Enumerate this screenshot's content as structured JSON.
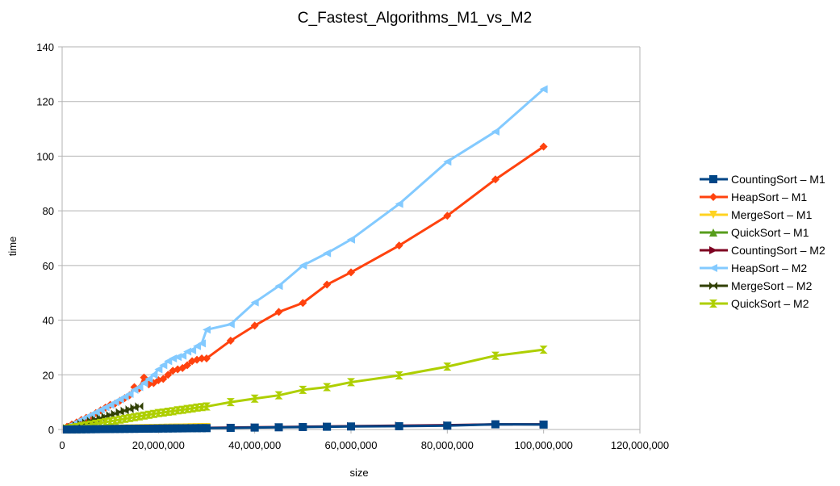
{
  "chart_data": {
    "type": "line",
    "title": "C_Fastest_Algorithms_M1_vs_M2",
    "xlabel": "size",
    "ylabel": "time",
    "xlim": [
      0,
      120000000
    ],
    "ylim": [
      0,
      140
    ],
    "xticks": [
      0,
      20000000,
      40000000,
      60000000,
      80000000,
      100000000,
      120000000
    ],
    "xtick_labels": [
      "0",
      "20,000,000",
      "40,000,000",
      "60,000,000",
      "80,000,000",
      "100,000,000",
      "120,000,000"
    ],
    "yticks": [
      0,
      20,
      40,
      60,
      80,
      100,
      120,
      140
    ],
    "ytick_labels": [
      "0",
      "20",
      "40",
      "60",
      "80",
      "100",
      "120",
      "140"
    ],
    "grid": "horizontal",
    "legend": "right",
    "x_dense_millions": [
      1,
      2,
      3,
      4,
      5,
      6,
      7,
      8,
      9,
      10,
      11,
      12,
      13,
      14,
      15,
      16,
      17,
      18,
      19,
      20,
      21,
      22,
      23,
      24,
      25,
      26,
      27,
      28,
      29,
      30
    ],
    "x_sparse_millions": [
      35,
      40,
      45,
      50,
      55,
      60,
      70,
      80,
      90,
      100
    ],
    "series": [
      {
        "name": "CountingSort – M1",
        "color": "#004586",
        "marker": "square",
        "values": [
          0.02,
          0.03,
          0.05,
          0.07,
          0.08,
          0.1,
          0.12,
          0.14,
          0.15,
          0.17,
          0.19,
          0.2,
          0.22,
          0.24,
          0.25,
          0.27,
          0.29,
          0.3,
          0.32,
          0.34,
          0.36,
          0.37,
          0.39,
          0.41,
          0.42,
          0.44,
          0.46,
          0.47,
          0.49,
          0.5,
          0.6,
          0.7,
          0.8,
          0.9,
          1.0,
          1.1,
          1.2,
          1.4,
          1.9,
          1.8
        ]
      },
      {
        "name": "HeapSort – M1",
        "color": "#ff420e",
        "marker": "diamond",
        "values": [
          1,
          1.8,
          2.6,
          3.5,
          4.3,
          5,
          6,
          7,
          8,
          9,
          9.5,
          10.5,
          11.5,
          12.5,
          15.5,
          15,
          19,
          16.5,
          17,
          18,
          18.5,
          20,
          21.5,
          22,
          22.5,
          23.5,
          25,
          25.5,
          26,
          26,
          32.5,
          38,
          43,
          46.3,
          53,
          57.5,
          67.3,
          78.2,
          91.5,
          103.5
        ]
      },
      {
        "name": "MergeSort – M1",
        "color": "#ffd320",
        "marker": "triangle-down",
        "values": [
          0.03,
          0.06,
          0.09,
          0.12,
          0.15,
          0.18,
          0.21,
          0.24,
          0.27,
          0.3,
          0.33,
          0.36,
          0.39,
          0.42,
          0.45,
          0.48,
          0.51,
          0.54,
          0.57,
          0.6,
          0.63,
          0.66,
          0.69,
          0.72,
          0.75,
          0.78,
          0.81,
          0.84,
          0.87,
          0.9
        ]
      },
      {
        "name": "QuickSort – M1",
        "color": "#579d1c",
        "marker": "triangle-up",
        "values": [
          0.03,
          0.05,
          0.08,
          0.1,
          0.13,
          0.15,
          0.18,
          0.2,
          0.23,
          0.25,
          0.28,
          0.3,
          0.33,
          0.35,
          0.38,
          0.4,
          0.43,
          0.45,
          0.48,
          0.5,
          0.53,
          0.55,
          0.58,
          0.6,
          0.63,
          0.65,
          0.68,
          0.7,
          0.73,
          0.75
        ]
      },
      {
        "name": "CountingSort – M2",
        "color": "#7e0021",
        "marker": "triangle-right",
        "values": [
          0.02,
          0.04,
          0.06,
          0.08,
          0.1,
          0.12,
          0.14,
          0.16,
          0.18,
          0.2,
          0.22,
          0.24,
          0.26,
          0.28,
          0.3,
          0.32,
          0.34,
          0.36,
          0.38,
          0.4,
          0.42,
          0.44,
          0.46,
          0.48,
          0.5,
          0.52,
          0.54,
          0.56,
          0.58,
          0.6,
          0.7,
          0.8,
          0.9,
          1.0,
          1.1,
          1.2,
          1.4,
          1.6,
          1.9,
          1.9
        ]
      },
      {
        "name": "HeapSort – M2",
        "color": "#83caff",
        "marker": "triangle-left",
        "values": [
          0.9,
          1.8,
          2.7,
          3.6,
          4.5,
          5.4,
          6.3,
          7.2,
          8.1,
          9,
          10,
          11,
          12,
          13,
          14.5,
          15.5,
          17,
          18.5,
          20,
          22,
          23.5,
          25,
          26,
          26.5,
          27,
          28.5,
          29,
          30.5,
          31.5,
          36.5,
          38.5,
          46.5,
          52.5,
          60,
          64.5,
          69.5,
          82.5,
          98,
          109,
          124.5
        ]
      },
      {
        "name": "MergeSort – M2",
        "color": "#314004",
        "marker": "bowtie",
        "values": [
          0.5,
          1,
          1.6,
          2.1,
          2.6,
          3.2,
          3.7,
          4.2,
          4.8,
          5.3,
          5.8,
          6.4,
          6.9,
          7.4,
          8,
          8.5
        ]
      },
      {
        "name": "QuickSort – M2",
        "color": "#aecf00",
        "marker": "hourglass",
        "values": [
          0.3,
          0.6,
          0.9,
          1.2,
          1.5,
          1.8,
          2.1,
          2.4,
          2.7,
          3,
          3.3,
          3.6,
          3.9,
          4.2,
          4.5,
          4.8,
          5.1,
          5.4,
          5.7,
          6,
          6.2,
          6.5,
          6.7,
          7,
          7.2,
          7.5,
          7.7,
          8,
          8.2,
          8.4,
          10,
          11.3,
          12.5,
          14.5,
          15.5,
          17.3,
          19.8,
          23,
          27,
          29.2
        ]
      }
    ]
  }
}
